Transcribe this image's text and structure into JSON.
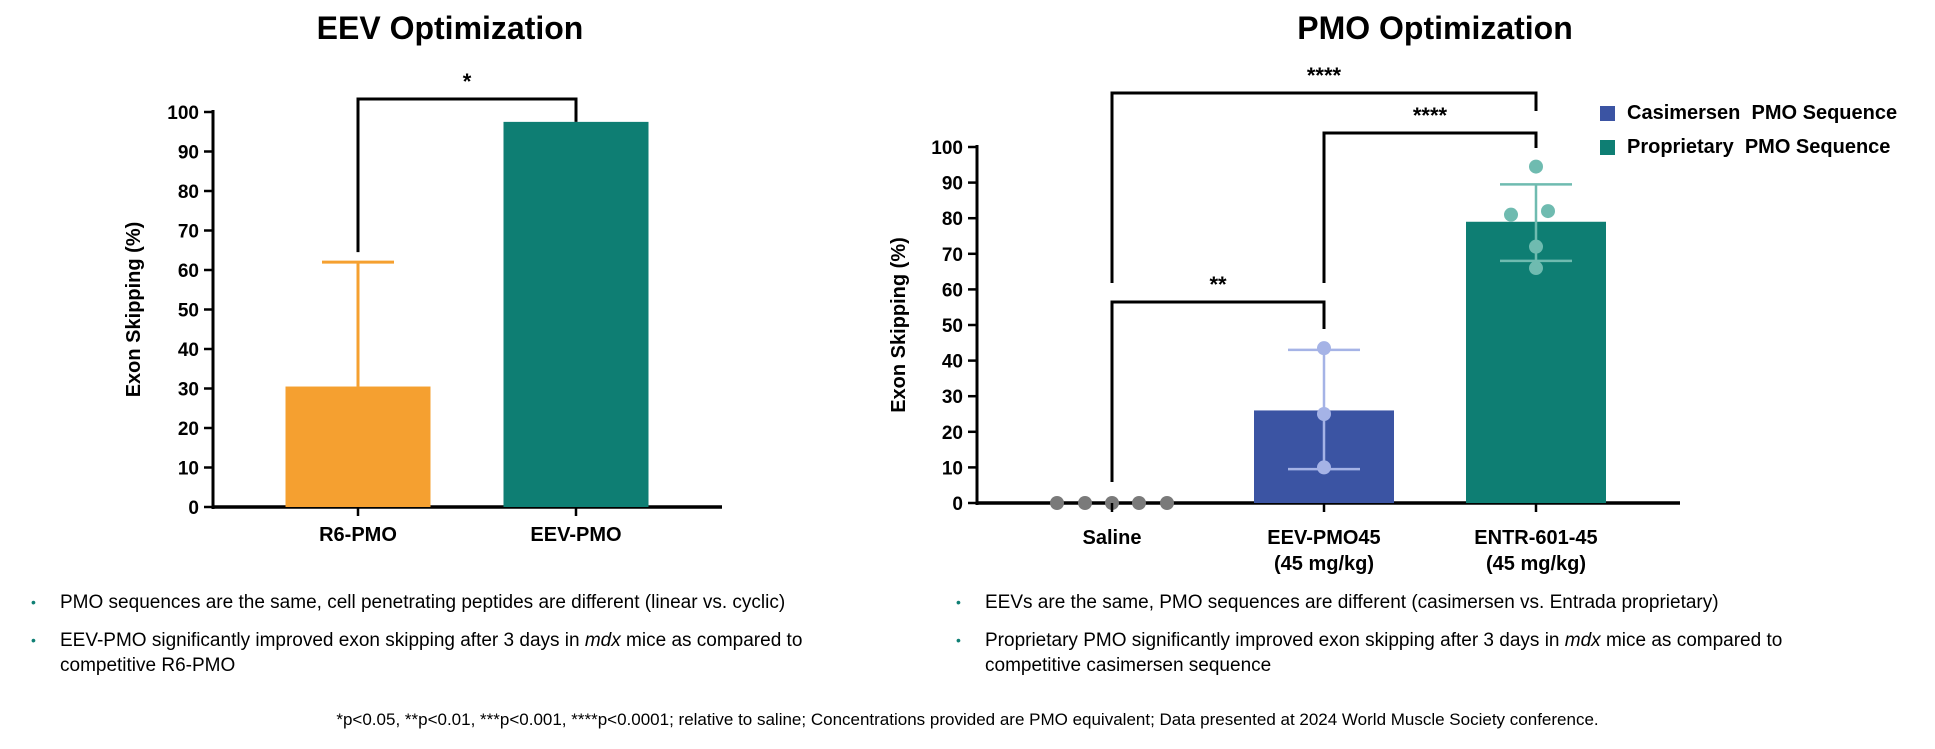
{
  "colors": {
    "r6": "#f5a030",
    "eev": "#0e7e73",
    "casimersen": "#3b54a3",
    "casimersen_points": "#a5b3e6",
    "proprietary_points": "#6fbbb0",
    "saline_points": "#7a7a7a",
    "bullet": "#0f7f74"
  },
  "chart_data": [
    {
      "id": "left",
      "type": "bar",
      "title": "EEV Optimization",
      "ylabel": "Exon Skipping (%)",
      "ylim": [
        0,
        100
      ],
      "yticks": [
        0,
        10,
        20,
        30,
        40,
        50,
        60,
        70,
        80,
        90,
        100
      ],
      "categories": [
        "R6-PMO",
        "EEV-PMO"
      ],
      "values": [
        30.5,
        97.5
      ],
      "error_upper": [
        62,
        null
      ],
      "significance": [
        {
          "from": "R6-PMO",
          "to": "EEV-PMO",
          "label": "*"
        }
      ]
    },
    {
      "id": "right",
      "type": "bar",
      "title": "PMO Optimization",
      "ylabel": "Exon Skipping (%)",
      "ylim": [
        0,
        100
      ],
      "yticks": [
        0,
        10,
        20,
        30,
        40,
        50,
        60,
        70,
        80,
        90,
        100
      ],
      "categories": [
        {
          "line1": "Saline",
          "line2": ""
        },
        {
          "line1": "EEV-PMO45",
          "line2": "(45 mg/kg)"
        },
        {
          "line1": "ENTR-601-45",
          "line2": "(45 mg/kg)"
        }
      ],
      "values": [
        0,
        26,
        79
      ],
      "error": [
        null,
        [
          9.5,
          43
        ],
        [
          68,
          89.5
        ]
      ],
      "points": [
        [
          0,
          0,
          0,
          0,
          0
        ],
        [
          43.5,
          25,
          10
        ],
        [
          94.5,
          81,
          82,
          72,
          66
        ]
      ],
      "series": [
        {
          "name": "Casimersen  PMO Sequence"
        },
        {
          "name": "Proprietary  PMO Sequence"
        }
      ],
      "significance": [
        {
          "from": "Saline",
          "to": "ENTR-601-45",
          "label": "****"
        },
        {
          "from": "EEV-PMO45",
          "to": "ENTR-601-45",
          "label": "****"
        },
        {
          "from": "Saline",
          "to": "EEV-PMO45",
          "label": "**"
        }
      ]
    }
  ],
  "left_bullets": [
    {
      "text": "PMO sequences are the same, cell penetrating peptides are different (linear vs. cyclic)"
    },
    {
      "before": "EEV-PMO significantly improved exon skipping after 3 days in ",
      "em": "mdx",
      "after": " mice as compared to competitive R6-PMO"
    }
  ],
  "right_bullets": [
    {
      "text": "EEVs are the same, PMO sequences are different (casimersen vs. Entrada proprietary)"
    },
    {
      "before": "Proprietary PMO significantly improved exon skipping after 3 days in ",
      "em": "mdx",
      "after": " mice as compared to competitive casimersen sequence"
    }
  ],
  "bullet_glyph": "•",
  "footnote": "*p<0.05, **p<0.01, ***p<0.001, ****p<0.0001; relative to saline; Concentrations provided are PMO equivalent; Data presented at 2024 World Muscle Society conference."
}
